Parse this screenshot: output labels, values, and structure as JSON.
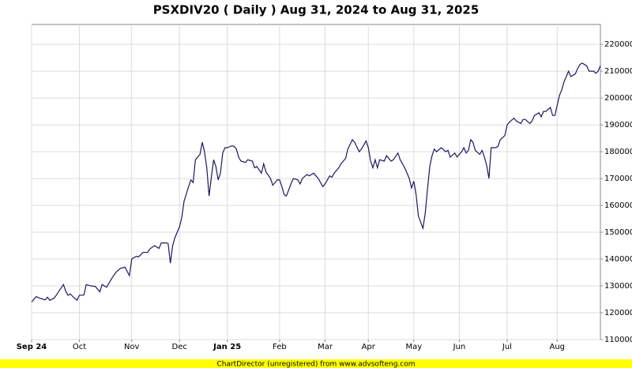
{
  "chart_data": {
    "type": "line",
    "title": "PSXDIV20 ( Daily ) Aug 31, 2024 to Aug 31, 2025",
    "footer": "ChartDirector (unregistered) from www.advsofteng.com",
    "series": [
      {
        "color": "#1a1a5e",
        "x": [
          0,
          2,
          4,
          6,
          7,
          8,
          10,
          12,
          14,
          15,
          16,
          17,
          19,
          20,
          21,
          23,
          24,
          26,
          28,
          30,
          31,
          33,
          35,
          37,
          39,
          41,
          43,
          44,
          46,
          47,
          49,
          51,
          52,
          54,
          56,
          57,
          59,
          60,
          61,
          62,
          63,
          65,
          66,
          67,
          69,
          70,
          71,
          72,
          74,
          75,
          76,
          77,
          78,
          79,
          80,
          81,
          82,
          83,
          84,
          85,
          86,
          88,
          89,
          90,
          91,
          92,
          94,
          95,
          97,
          98,
          99,
          101,
          102,
          103,
          105,
          106,
          108,
          109,
          110,
          111,
          112,
          114,
          115,
          117,
          118,
          119,
          121,
          122,
          124,
          125,
          126,
          128,
          129,
          131,
          132,
          133,
          135,
          136,
          138,
          139,
          141,
          142,
          144,
          145,
          147,
          148,
          149,
          150,
          151,
          152,
          153,
          155,
          156,
          158,
          159,
          161,
          162,
          164,
          165,
          166,
          167,
          168,
          169,
          170,
          172,
          173,
          174,
          175,
          176,
          177,
          178,
          180,
          182,
          183,
          184,
          186,
          187,
          189,
          190,
          191,
          192,
          193,
          194,
          195,
          197,
          198,
          199,
          200,
          201,
          202,
          204,
          205,
          206,
          208,
          209,
          210,
          212,
          213,
          215,
          216,
          217,
          219,
          220,
          221,
          223,
          224,
          225,
          226,
          228,
          229,
          230,
          232,
          233,
          234,
          236,
          237,
          239,
          240,
          241,
          242,
          244,
          245,
          247,
          248,
          249,
          250
        ],
        "values": [
          124000,
          126000,
          125300,
          124800,
          125800,
          124600,
          125500,
          128000,
          130500,
          128000,
          126500,
          127000,
          125300,
          124700,
          126500,
          126600,
          130500,
          130000,
          129800,
          127800,
          130500,
          129500,
          132500,
          135000,
          136500,
          137000,
          133800,
          140000,
          141000,
          140800,
          142500,
          142500,
          143800,
          145000,
          144000,
          146000,
          146000,
          145800,
          138500,
          145000,
          148000,
          152000,
          155500,
          161500,
          167000,
          169500,
          168500,
          177000,
          179000,
          183500,
          180000,
          174000,
          163500,
          170500,
          177000,
          174500,
          169500,
          172000,
          179500,
          181500,
          181500,
          182200,
          182000,
          181000,
          178000,
          176500,
          176000,
          177000,
          176500,
          174000,
          174500,
          172000,
          175500,
          172500,
          170000,
          167500,
          169500,
          169500,
          167000,
          164000,
          163500,
          168000,
          170000,
          169500,
          168000,
          170000,
          171500,
          171000,
          172000,
          171000,
          170000,
          167000,
          168000,
          171000,
          170500,
          172000,
          174000,
          175500,
          177500,
          181000,
          184500,
          183500,
          180000,
          181000,
          184000,
          181500,
          176500,
          174000,
          177000,
          174000,
          177000,
          176500,
          178500,
          176500,
          177000,
          179500,
          177000,
          174000,
          172000,
          170000,
          166500,
          169000,
          164000,
          156000,
          151500,
          157000,
          166000,
          174500,
          178500,
          181000,
          180000,
          181500,
          180000,
          180500,
          178000,
          179500,
          178000,
          180000,
          181500,
          179500,
          180500,
          184500,
          183500,
          180500,
          179000,
          180500,
          178000,
          175000,
          170000,
          181500,
          181500,
          182000,
          184500,
          186000,
          190000,
          191000,
          192500,
          191500,
          190500,
          192000,
          192000,
          190500,
          191500,
          193500,
          194500,
          193000,
          195000,
          195000,
          196500,
          193500,
          193500,
          201000,
          203000,
          206000,
          210000,
          208000,
          209000,
          211000,
          212500,
          213000,
          212000,
          210000,
          210000,
          209200,
          210000,
          212000
        ]
      }
    ],
    "xlim": [
      0,
      250
    ],
    "xticks": [
      {
        "value": 0,
        "label": "Sep 24"
      },
      {
        "value": 21,
        "label": "Oct"
      },
      {
        "value": 44,
        "label": "Nov"
      },
      {
        "value": 65,
        "label": "Dec"
      },
      {
        "value": 86,
        "label": "Jan 25"
      },
      {
        "value": 109,
        "label": "Feb"
      },
      {
        "value": 129,
        "label": "Mar"
      },
      {
        "value": 148,
        "label": "Apr"
      },
      {
        "value": 168,
        "label": "May"
      },
      {
        "value": 188,
        "label": "Jun"
      },
      {
        "value": 209,
        "label": "Jul"
      },
      {
        "value": 231,
        "label": "Aug"
      }
    ],
    "ylim": [
      110000,
      227400
    ],
    "yticks": [
      110000,
      120000,
      130000,
      140000,
      150000,
      160000,
      170000,
      180000,
      190000,
      200000,
      210000,
      220000
    ],
    "grid": true
  }
}
